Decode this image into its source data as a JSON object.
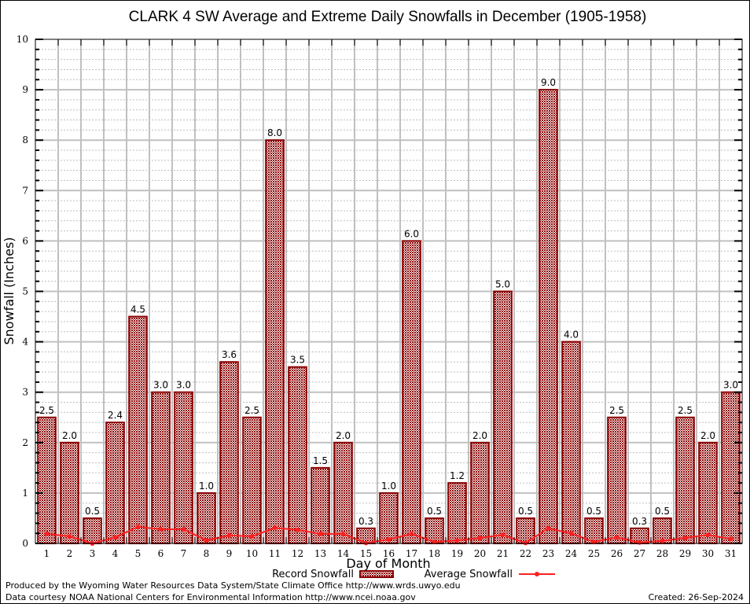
{
  "chart_data": {
    "type": "bar",
    "title": "CLARK 4 SW Average and Extreme Daily Snowfalls in December (1905-1958)",
    "xlabel": "Day of Month",
    "ylabel": "Snowfall (Inches)",
    "ylim": [
      0,
      10
    ],
    "yticks": [
      0,
      1,
      2,
      3,
      4,
      5,
      6,
      7,
      8,
      9,
      10
    ],
    "y_minor_step": 0.2,
    "grid": true,
    "categories": [
      "1",
      "2",
      "3",
      "4",
      "5",
      "6",
      "7",
      "8",
      "9",
      "10",
      "11",
      "12",
      "13",
      "14",
      "15",
      "16",
      "17",
      "18",
      "19",
      "20",
      "21",
      "22",
      "23",
      "24",
      "25",
      "26",
      "27",
      "28",
      "29",
      "30",
      "31"
    ],
    "series": [
      {
        "name": "Record Snowfall",
        "type": "bar",
        "color": "#8b0000",
        "values": [
          2.5,
          2.0,
          0.5,
          2.4,
          4.5,
          3.0,
          3.0,
          1.0,
          3.6,
          2.5,
          8.0,
          3.5,
          1.5,
          2.0,
          0.3,
          1.0,
          6.0,
          0.5,
          1.2,
          2.0,
          5.0,
          0.5,
          9.0,
          4.0,
          0.5,
          2.5,
          0.3,
          0.5,
          2.5,
          2.0,
          3.0
        ],
        "labels": [
          "2.5",
          "2.0",
          "0.5",
          "2.4",
          "4.5",
          "3.0",
          "3.0",
          "1.0",
          "3.6",
          "2.5",
          "8.0",
          "3.5",
          "1.5",
          "2.0",
          "0.3",
          "1.0",
          "6.0",
          "0.5",
          "1.2",
          "2.0",
          "5.0",
          "0.5",
          "9.0",
          "4.0",
          "0.5",
          "2.5",
          "0.3",
          "0.5",
          "2.5",
          "2.0",
          "3.0"
        ]
      },
      {
        "name": "Average Snowfall",
        "type": "line",
        "color": "#ff2020",
        "values": [
          0.19,
          0.14,
          0.0,
          0.12,
          0.33,
          0.28,
          0.28,
          0.06,
          0.16,
          0.14,
          0.31,
          0.27,
          0.19,
          0.19,
          0.01,
          0.08,
          0.19,
          0.03,
          0.06,
          0.11,
          0.17,
          0.01,
          0.3,
          0.2,
          0.03,
          0.12,
          0.02,
          0.05,
          0.11,
          0.17,
          0.09
        ]
      }
    ],
    "legend": {
      "placement": "bottom-center",
      "entries": [
        "Record Snowfall",
        "Average Snowfall"
      ]
    }
  },
  "footer": {
    "produced_by": "Produced by the Wyoming Water Resources Data System/State Climate Office http://www.wrds.uwyo.edu",
    "data_courtesy": "Data courtesy NOAA National Centers for Environmental Information http://www.ncei.noaa.gov",
    "created": "Created:  26-Sep-2024"
  }
}
